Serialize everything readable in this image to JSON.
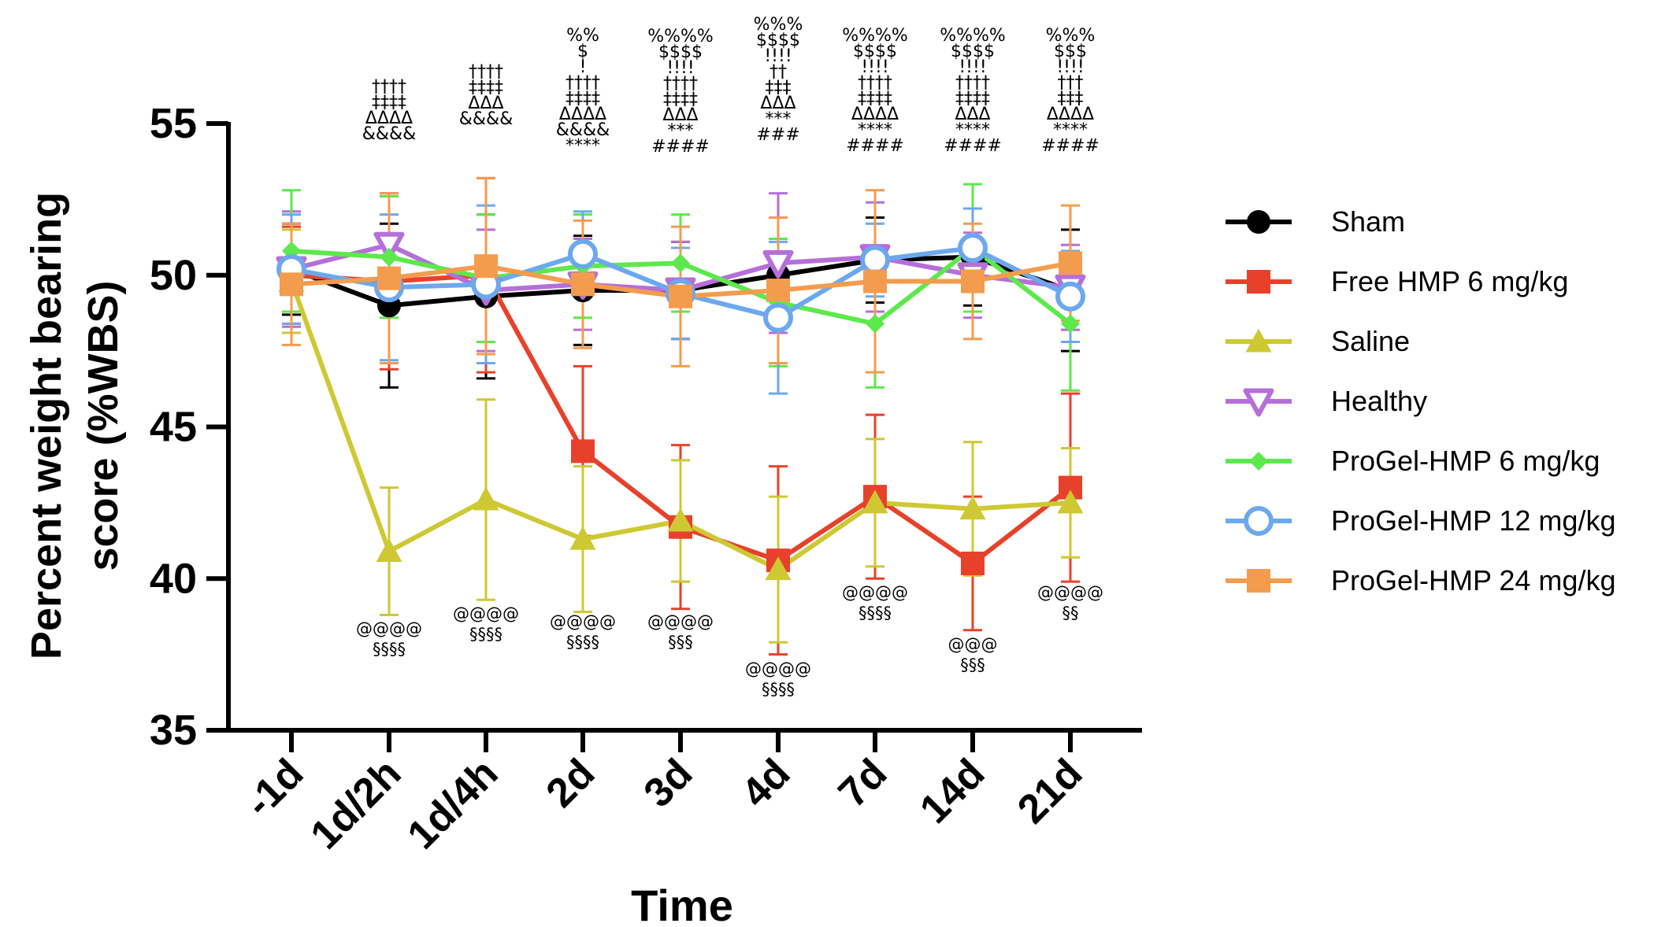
{
  "chart_data": {
    "type": "line",
    "title": "",
    "xlabel": "Time",
    "ylabel_lines": [
      "Percent weight bearing",
      "score (%WBS)"
    ],
    "ylim": [
      35,
      55
    ],
    "yticks": [
      35,
      40,
      45,
      50,
      55
    ],
    "categories": [
      "-1d",
      "1d/2h",
      "1d/4h",
      "2d",
      "3d",
      "4d",
      "7d",
      "14d",
      "21d"
    ],
    "legend_position": "right",
    "series": [
      {
        "name": "Sham",
        "color": "#000000",
        "marker": "circle-filled",
        "values": [
          50.2,
          49.0,
          49.3,
          49.5,
          49.5,
          50.0,
          50.5,
          50.6,
          49.5
        ],
        "errors": [
          1.5,
          2.7,
          2.7,
          1.8,
          1.6,
          1.9,
          1.4,
          1.6,
          2.0
        ]
      },
      {
        "name": "Free HMP 6 mg/kg",
        "color": "#E8412B",
        "marker": "square-filled",
        "values": [
          50.0,
          49.8,
          50.0,
          44.2,
          41.7,
          40.6,
          42.7,
          40.5,
          43.0
        ],
        "errors": [
          1.6,
          2.9,
          3.2,
          2.8,
          2.7,
          3.1,
          2.7,
          2.2,
          3.1
        ]
      },
      {
        "name": "Saline",
        "color": "#CEC833",
        "marker": "triangle-up-filled",
        "values": [
          49.8,
          40.9,
          42.6,
          41.3,
          41.9,
          40.3,
          42.5,
          42.3,
          42.5
        ],
        "errors": [
          1.7,
          2.1,
          3.3,
          2.4,
          2.0,
          2.4,
          2.1,
          2.2,
          1.8
        ]
      },
      {
        "name": "Healthy",
        "color": "#B56FD9",
        "marker": "triangle-down-open",
        "values": [
          50.2,
          51.0,
          49.5,
          49.7,
          49.5,
          50.4,
          50.6,
          50.0,
          49.6
        ],
        "errors": [
          1.9,
          1.7,
          2.0,
          1.5,
          1.6,
          2.3,
          1.8,
          1.4,
          1.4
        ]
      },
      {
        "name": "ProGel-HMP 6 mg/kg",
        "color": "#5DE84B",
        "marker": "diamond-filled",
        "values": [
          50.8,
          50.6,
          49.9,
          50.3,
          50.4,
          49.1,
          48.4,
          50.9,
          48.4
        ],
        "errors": [
          2.0,
          2.0,
          2.1,
          1.7,
          1.6,
          2.1,
          2.1,
          2.1,
          2.2
        ]
      },
      {
        "name": "ProGel-HMP 12 mg/kg",
        "color": "#6CA8EE",
        "marker": "circle-open",
        "values": [
          50.2,
          49.6,
          49.7,
          50.7,
          49.4,
          48.6,
          50.5,
          50.9,
          49.3
        ],
        "errors": [
          1.8,
          2.4,
          2.6,
          1.4,
          1.5,
          2.5,
          1.2,
          1.3,
          1.5
        ]
      },
      {
        "name": "ProGel-HMP 24 mg/kg",
        "color": "#F39C4E",
        "marker": "square-filled",
        "values": [
          49.7,
          49.9,
          50.3,
          49.7,
          49.3,
          49.5,
          49.8,
          49.8,
          50.4
        ],
        "errors": [
          2.0,
          2.8,
          2.9,
          2.1,
          2.3,
          2.4,
          3.0,
          1.9,
          1.9
        ]
      }
    ],
    "annotations_top": [
      [],
      [
        "††††",
        "‡‡‡‡",
        "ΔΔΔΔ",
        "&&&&"
      ],
      [
        "††††",
        "‡‡‡‡",
        "ΔΔΔ",
        "&&&&"
      ],
      [
        "%%",
        "$",
        "!",
        "††††",
        "‡‡‡‡",
        "ΔΔΔΔ",
        "&&&&",
        "****"
      ],
      [
        "%%%%",
        "$$$$",
        "!!!!",
        "††††",
        "‡‡‡‡",
        "ΔΔΔ",
        "***",
        "####"
      ],
      [
        "%%%",
        "$$$$",
        "!!!!",
        "††",
        "‡‡‡",
        "ΔΔΔ",
        "***",
        "###"
      ],
      [
        "%%%%",
        "$$$$",
        "!!!!",
        "††††",
        "‡‡‡‡",
        "ΔΔΔΔ",
        "****",
        "####"
      ],
      [
        "%%%%",
        "$$$$",
        "!!!!",
        "††††",
        "‡‡‡‡",
        "ΔΔΔ",
        "****",
        "####"
      ],
      [
        "%%%",
        "$$$",
        "!!!!",
        "†††",
        "‡‡‡",
        "ΔΔΔΔ",
        "****",
        "####"
      ]
    ],
    "annotations_bottom": [
      [],
      [
        "@@@@",
        "§§§§"
      ],
      [
        "@@@@",
        "§§§§"
      ],
      [
        "@@@@",
        "§§§§"
      ],
      [
        "@@@@",
        "§§§"
      ],
      [
        "@@@@",
        "§§§§"
      ],
      [
        "@@@@",
        "§§§§"
      ],
      [
        "@@@",
        "§§§"
      ],
      [
        "@@@@",
        "§§"
      ]
    ]
  }
}
